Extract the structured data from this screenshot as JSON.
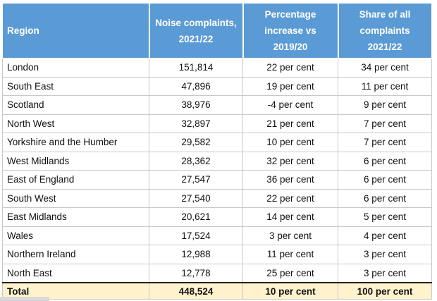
{
  "table": {
    "headers": [
      "Region",
      "Noise complaints,\n2021/22",
      "Percentage\nincrease vs\n2019/20",
      "Share of all\ncomplaints\n2021/22"
    ],
    "rows": [
      [
        "London",
        "151,814",
        "22 per cent",
        "34 per cent"
      ],
      [
        "South East",
        "47,896",
        "19 per cent",
        "11 per cent"
      ],
      [
        "Scotland",
        "38,976",
        "-4 per cent",
        "9 per cent"
      ],
      [
        "North West",
        "32,897",
        "21 per cent",
        "7 per cent"
      ],
      [
        "Yorkshire and the Humber",
        "29,582",
        "10 per cent",
        "7 per cent"
      ],
      [
        "West Midlands",
        "28,362",
        "32 per cent",
        "6 per cent"
      ],
      [
        "East of England",
        "27,547",
        "36 per cent",
        "6 per cent"
      ],
      [
        "South West",
        "27,540",
        "22 per cent",
        "6 per cent"
      ],
      [
        "East Midlands",
        "20,621",
        "14 per cent",
        "5 per cent"
      ],
      [
        "Wales",
        "17,524",
        "3 per cent",
        "4 per cent"
      ],
      [
        "Northern Ireland",
        "12,988",
        "11 per cent",
        "3 per cent"
      ],
      [
        "North East",
        "12,778",
        "25 per cent",
        "3 per cent"
      ]
    ],
    "total": [
      "Total",
      "448,524",
      "10 per cent",
      "100 per cent"
    ]
  },
  "colors": {
    "header_bg": "#5b9bd5",
    "header_text": "#ffffff",
    "total_bg": "#fff2cc",
    "grid": "#c9c9c9"
  }
}
